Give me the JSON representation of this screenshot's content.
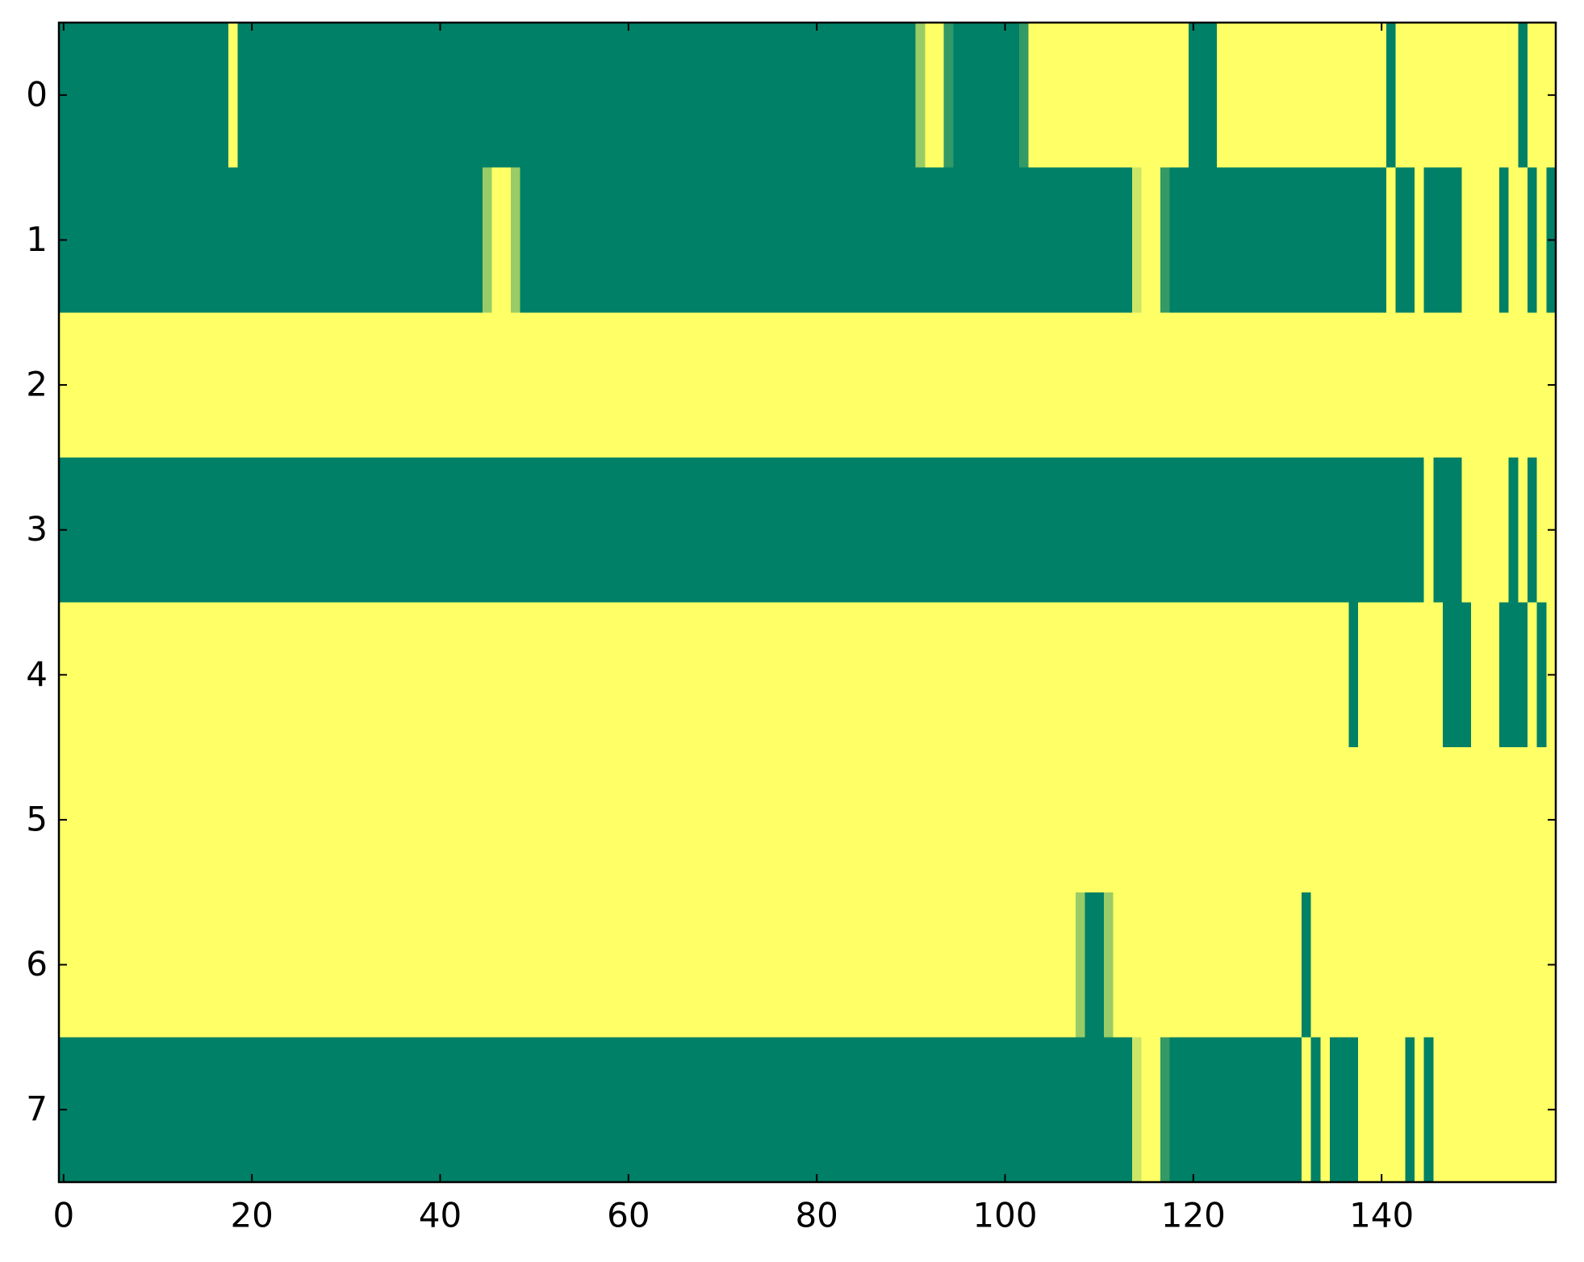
{
  "chart_data": {
    "type": "heatmap",
    "colormap": "summer",
    "clim": [
      0,
      1
    ],
    "xlim": [
      -0.5,
      158.5
    ],
    "ylim": [
      7.5,
      -0.5
    ],
    "xticks": [
      0,
      20,
      40,
      60,
      80,
      100,
      120,
      140
    ],
    "yticks": [
      0,
      1,
      2,
      3,
      4,
      5,
      6,
      7
    ],
    "values": [
      [
        0,
        0,
        0,
        0,
        0,
        0,
        0,
        0,
        0,
        0,
        0,
        0,
        0,
        0,
        0,
        0,
        0,
        0,
        1,
        0,
        0,
        0,
        0,
        0,
        0,
        0,
        0,
        0,
        0,
        0,
        0,
        0,
        0,
        0,
        0,
        0,
        0,
        0,
        0,
        0,
        0,
        0,
        0,
        0,
        0,
        0,
        0,
        0,
        0,
        0,
        0,
        0,
        0,
        0,
        0,
        0,
        0,
        0,
        0,
        0,
        0,
        0,
        0,
        0,
        0,
        0,
        0,
        0,
        0,
        0,
        0,
        0,
        0,
        0,
        0,
        0,
        0,
        0,
        0,
        0,
        0,
        0,
        0,
        0,
        0,
        0,
        0,
        0,
        0,
        0,
        0,
        0.6,
        1,
        1,
        0.2,
        0,
        0,
        0,
        0,
        0,
        0,
        0,
        0.2,
        1,
        1,
        1,
        1,
        1,
        1,
        1,
        1,
        1,
        1,
        1,
        1,
        1,
        1,
        1,
        1,
        1,
        0,
        0,
        0,
        1,
        1,
        1,
        1,
        1,
        1,
        1,
        1,
        1,
        1,
        1,
        1,
        1,
        1,
        1,
        1,
        1,
        1,
        0,
        1,
        1,
        1,
        1,
        1,
        1,
        1,
        1,
        1,
        1,
        1,
        1,
        1,
        0,
        1,
        1,
        1
      ],
      [
        0,
        0,
        0,
        0,
        0,
        0,
        0,
        0,
        0,
        0,
        0,
        0,
        0,
        0,
        0,
        0,
        0,
        0,
        0,
        0,
        0,
        0,
        0,
        0,
        0,
        0,
        0,
        0,
        0,
        0,
        0,
        0,
        0,
        0,
        0,
        0,
        0,
        0,
        0,
        0,
        0,
        0,
        0,
        0,
        0,
        0.6,
        1,
        1,
        0.6,
        0,
        0,
        0,
        0,
        0,
        0,
        0,
        0,
        0,
        0,
        0,
        0,
        0,
        0,
        0,
        0,
        0,
        0,
        0,
        0,
        0,
        0,
        0,
        0,
        0,
        0,
        0,
        0,
        0,
        0,
        0,
        0,
        0,
        0,
        0,
        0,
        0,
        0,
        0,
        0,
        0,
        0,
        0,
        0,
        0,
        0,
        0,
        0,
        0,
        0,
        0,
        0,
        0,
        0,
        0,
        0,
        0,
        0,
        0,
        0,
        0,
        0,
        0,
        0,
        0,
        0.8,
        1,
        1,
        0.2,
        0,
        0,
        0,
        0,
        0,
        0,
        0,
        0,
        0,
        0,
        0,
        0,
        0,
        0,
        0,
        0,
        0,
        0,
        0,
        0,
        0,
        0,
        0,
        1,
        0,
        0,
        1,
        0,
        0,
        0,
        0,
        1,
        1,
        1,
        1,
        0,
        1,
        1,
        0,
        1,
        0
      ],
      [
        1,
        1,
        1,
        1,
        1,
        1,
        1,
        1,
        1,
        1,
        1,
        1,
        1,
        1,
        1,
        1,
        1,
        1,
        1,
        1,
        1,
        1,
        1,
        1,
        1,
        1,
        1,
        1,
        1,
        1,
        1,
        1,
        1,
        1,
        1,
        1,
        1,
        1,
        1,
        1,
        1,
        1,
        1,
        1,
        1,
        1,
        1,
        1,
        1,
        1,
        1,
        1,
        1,
        1,
        1,
        1,
        1,
        1,
        1,
        1,
        1,
        1,
        1,
        1,
        1,
        1,
        1,
        1,
        1,
        1,
        1,
        1,
        1,
        1,
        1,
        1,
        1,
        1,
        1,
        1,
        1,
        1,
        1,
        1,
        1,
        1,
        1,
        1,
        1,
        1,
        1,
        1,
        1,
        1,
        1,
        1,
        1,
        1,
        1,
        1,
        1,
        1,
        1,
        1,
        1,
        1,
        1,
        1,
        1,
        1,
        1,
        1,
        1,
        1,
        1,
        1,
        1,
        1,
        1,
        1,
        1,
        1,
        1,
        1,
        1,
        1,
        1,
        1,
        1,
        1,
        1,
        1,
        1,
        1,
        1,
        1,
        1,
        1,
        1,
        1,
        1,
        1,
        1,
        1,
        1,
        1,
        1,
        1,
        1,
        1,
        1,
        1,
        1,
        1,
        1,
        1,
        1,
        1,
        1
      ],
      [
        0,
        0,
        0,
        0,
        0,
        0,
        0,
        0,
        0,
        0,
        0,
        0,
        0,
        0,
        0,
        0,
        0,
        0,
        0,
        0,
        0,
        0,
        0,
        0,
        0,
        0,
        0,
        0,
        0,
        0,
        0,
        0,
        0,
        0,
        0,
        0,
        0,
        0,
        0,
        0,
        0,
        0,
        0,
        0,
        0,
        0,
        0,
        0,
        0,
        0,
        0,
        0,
        0,
        0,
        0,
        0,
        0,
        0,
        0,
        0,
        0,
        0,
        0,
        0,
        0,
        0,
        0,
        0,
        0,
        0,
        0,
        0,
        0,
        0,
        0,
        0,
        0,
        0,
        0,
        0,
        0,
        0,
        0,
        0,
        0,
        0,
        0,
        0,
        0,
        0,
        0,
        0,
        0,
        0,
        0,
        0,
        0,
        0,
        0,
        0,
        0,
        0,
        0,
        0,
        0,
        0,
        0,
        0,
        0,
        0,
        0,
        0,
        0,
        0,
        0,
        0,
        0,
        0,
        0,
        0,
        0,
        0,
        0,
        0,
        0,
        0,
        0,
        0,
        0,
        0,
        0,
        0,
        0,
        0,
        0,
        0,
        0,
        0,
        0,
        0,
        0,
        0,
        0,
        0,
        0,
        1,
        0,
        0,
        0,
        1,
        1,
        1,
        1,
        1,
        0,
        1,
        0,
        1,
        1
      ],
      [
        1,
        1,
        1,
        1,
        1,
        1,
        1,
        1,
        1,
        1,
        1,
        1,
        1,
        1,
        1,
        1,
        1,
        1,
        1,
        1,
        1,
        1,
        1,
        1,
        1,
        1,
        1,
        1,
        1,
        1,
        1,
        1,
        1,
        1,
        1,
        1,
        1,
        1,
        1,
        1,
        1,
        1,
        1,
        1,
        1,
        1,
        1,
        1,
        1,
        1,
        1,
        1,
        1,
        1,
        1,
        1,
        1,
        1,
        1,
        1,
        1,
        1,
        1,
        1,
        1,
        1,
        1,
        1,
        1,
        1,
        1,
        1,
        1,
        1,
        1,
        1,
        1,
        1,
        1,
        1,
        1,
        1,
        1,
        1,
        1,
        1,
        1,
        1,
        1,
        1,
        1,
        1,
        1,
        1,
        1,
        1,
        1,
        1,
        1,
        1,
        1,
        1,
        1,
        1,
        1,
        1,
        1,
        1,
        1,
        1,
        1,
        1,
        1,
        1,
        1,
        1,
        1,
        1,
        1,
        1,
        1,
        1,
        1,
        1,
        1,
        1,
        1,
        1,
        1,
        1,
        1,
        1,
        1,
        1,
        1,
        1,
        1,
        0,
        1,
        1,
        1,
        1,
        1,
        1,
        1,
        1,
        1,
        0,
        0,
        0,
        1,
        1,
        1,
        0,
        0,
        0,
        1,
        0,
        1
      ],
      [
        1,
        1,
        1,
        1,
        1,
        1,
        1,
        1,
        1,
        1,
        1,
        1,
        1,
        1,
        1,
        1,
        1,
        1,
        1,
        1,
        1,
        1,
        1,
        1,
        1,
        1,
        1,
        1,
        1,
        1,
        1,
        1,
        1,
        1,
        1,
        1,
        1,
        1,
        1,
        1,
        1,
        1,
        1,
        1,
        1,
        1,
        1,
        1,
        1,
        1,
        1,
        1,
        1,
        1,
        1,
        1,
        1,
        1,
        1,
        1,
        1,
        1,
        1,
        1,
        1,
        1,
        1,
        1,
        1,
        1,
        1,
        1,
        1,
        1,
        1,
        1,
        1,
        1,
        1,
        1,
        1,
        1,
        1,
        1,
        1,
        1,
        1,
        1,
        1,
        1,
        1,
        1,
        1,
        1,
        1,
        1,
        1,
        1,
        1,
        1,
        1,
        1,
        1,
        1,
        1,
        1,
        1,
        1,
        1,
        1,
        1,
        1,
        1,
        1,
        1,
        1,
        1,
        1,
        1,
        1,
        1,
        1,
        1,
        1,
        1,
        1,
        1,
        1,
        1,
        1,
        1,
        1,
        1,
        1,
        1,
        1,
        1,
        1,
        1,
        1,
        1,
        1,
        1,
        1,
        1,
        1,
        1,
        1,
        1,
        1,
        1,
        1,
        1,
        1,
        1,
        1,
        1,
        1,
        1
      ],
      [
        1,
        1,
        1,
        1,
        1,
        1,
        1,
        1,
        1,
        1,
        1,
        1,
        1,
        1,
        1,
        1,
        1,
        1,
        1,
        1,
        1,
        1,
        1,
        1,
        1,
        1,
        1,
        1,
        1,
        1,
        1,
        1,
        1,
        1,
        1,
        1,
        1,
        1,
        1,
        1,
        1,
        1,
        1,
        1,
        1,
        1,
        1,
        1,
        1,
        1,
        1,
        1,
        1,
        1,
        1,
        1,
        1,
        1,
        1,
        1,
        1,
        1,
        1,
        1,
        1,
        1,
        1,
        1,
        1,
        1,
        1,
        1,
        1,
        1,
        1,
        1,
        1,
        1,
        1,
        1,
        1,
        1,
        1,
        1,
        1,
        1,
        1,
        1,
        1,
        1,
        1,
        1,
        1,
        1,
        1,
        1,
        1,
        1,
        1,
        1,
        1,
        1,
        1,
        1,
        1,
        1,
        1,
        1,
        0.6,
        0,
        0,
        0.6,
        1,
        1,
        1,
        1,
        1,
        1,
        1,
        1,
        1,
        1,
        1,
        1,
        1,
        1,
        1,
        1,
        1,
        1,
        1,
        1,
        0,
        1,
        1,
        1,
        1,
        1,
        1,
        1,
        1,
        1,
        1,
        1,
        1,
        1,
        1,
        1,
        1,
        1,
        1,
        1,
        1,
        1,
        1,
        1,
        1,
        1,
        1
      ],
      [
        0,
        0,
        0,
        0,
        0,
        0,
        0,
        0,
        0,
        0,
        0,
        0,
        0,
        0,
        0,
        0,
        0,
        0,
        0,
        0,
        0,
        0,
        0,
        0,
        0,
        0,
        0,
        0,
        0,
        0,
        0,
        0,
        0,
        0,
        0,
        0,
        0,
        0,
        0,
        0,
        0,
        0,
        0,
        0,
        0,
        0,
        0,
        0,
        0,
        0,
        0,
        0,
        0,
        0,
        0,
        0,
        0,
        0,
        0,
        0,
        0,
        0,
        0,
        0,
        0,
        0,
        0,
        0,
        0,
        0,
        0,
        0,
        0,
        0,
        0,
        0,
        0,
        0,
        0,
        0,
        0,
        0,
        0,
        0,
        0,
        0,
        0,
        0,
        0,
        0,
        0,
        0,
        0,
        0,
        0,
        0,
        0,
        0,
        0,
        0,
        0,
        0,
        0,
        0,
        0,
        0,
        0,
        0,
        0,
        0,
        0,
        0,
        0,
        0,
        0.8,
        1,
        1,
        0.2,
        0,
        0,
        0,
        0,
        0,
        0,
        0,
        0,
        0,
        0,
        0,
        0,
        0,
        0,
        1,
        0,
        1,
        0,
        0,
        0,
        1,
        1,
        1,
        1,
        1,
        0,
        1,
        0,
        1,
        1,
        1,
        1,
        1,
        1,
        1,
        1,
        1,
        1,
        1,
        1,
        1
      ]
    ]
  }
}
